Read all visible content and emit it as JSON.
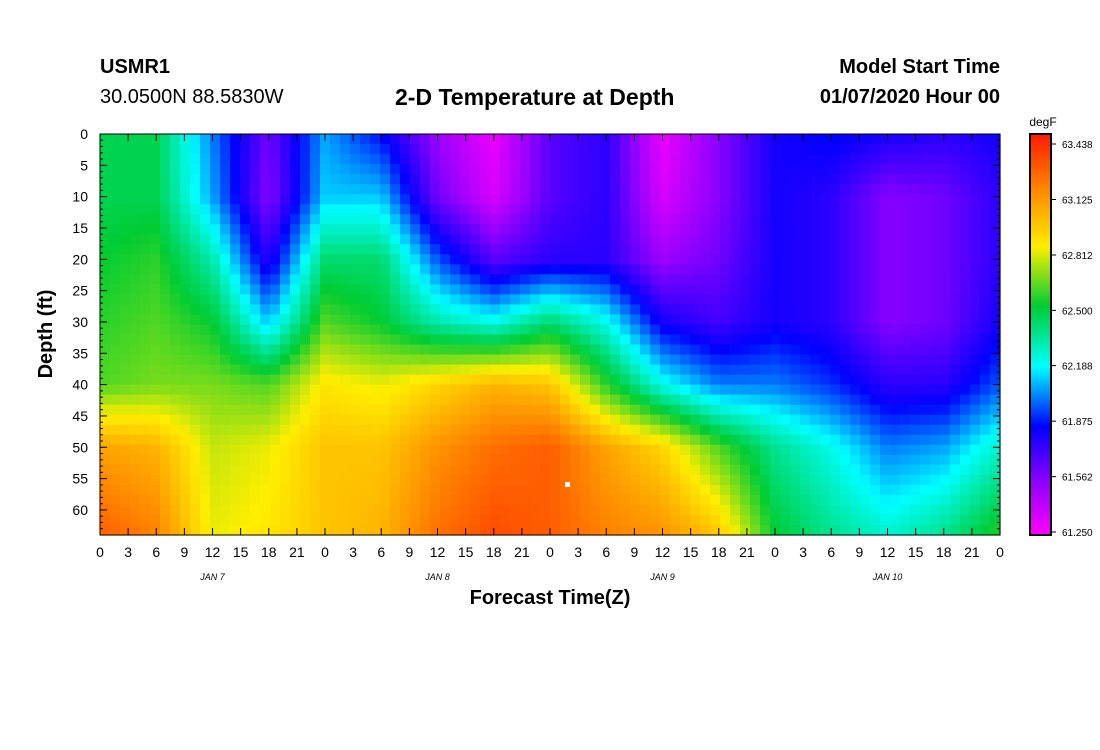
{
  "header": {
    "station_id": "USMR1",
    "coordinates": "30.0500N 88.5830W",
    "title": "2-D Temperature at Depth",
    "start_label": "Model Start Time",
    "start_value": "01/07/2020 Hour 00"
  },
  "chart_data": {
    "type": "heatmap",
    "title": "2-D Temperature at Depth",
    "xlabel": "Forecast Time(Z)",
    "ylabel": "Depth (ft)",
    "x_tick_labels": [
      "0",
      "3",
      "6",
      "9",
      "12",
      "15",
      "18",
      "21",
      "0",
      "3",
      "6",
      "9",
      "12",
      "15",
      "18",
      "21",
      "0",
      "3",
      "6",
      "9",
      "12",
      "15",
      "18",
      "21",
      "0",
      "3",
      "6",
      "9",
      "12",
      "15",
      "18",
      "21",
      "0"
    ],
    "x_range_hours": [
      0,
      96
    ],
    "day_labels": [
      {
        "label": "JAN 7",
        "hour": 12
      },
      {
        "label": "JAN 8",
        "hour": 36
      },
      {
        "label": "JAN 9",
        "hour": 60
      },
      {
        "label": "JAN 10",
        "hour": 84
      }
    ],
    "y_ticks": [
      0,
      5,
      10,
      15,
      20,
      25,
      30,
      35,
      40,
      45,
      50,
      55,
      60
    ],
    "y_range_ft": [
      0,
      64
    ],
    "y_inverted": true,
    "colorbar": {
      "unit": "degF",
      "min": 61.25,
      "max": 63.438,
      "tick_labels": [
        "63.438",
        "63.125",
        "62.812",
        "62.500",
        "62.188",
        "61.875",
        "61.562",
        "61.250"
      ],
      "tick_values": [
        63.438,
        63.125,
        62.812,
        62.5,
        62.188,
        61.875,
        61.562,
        61.25
      ]
    },
    "depths_ft": [
      0,
      10,
      20,
      30,
      40,
      50,
      64
    ],
    "hours": [
      0,
      6,
      12,
      18,
      24,
      30,
      36,
      42,
      48,
      54,
      60,
      66,
      72,
      78,
      84,
      90,
      96
    ],
    "temperature_degF": [
      [
        62.45,
        62.45,
        62.0,
        61.6,
        62.05,
        61.85,
        61.5,
        61.3,
        61.65,
        61.75,
        61.3,
        61.55,
        61.8,
        61.85,
        61.8,
        61.75,
        61.8
      ],
      [
        62.45,
        62.45,
        62.05,
        61.55,
        62.1,
        62.1,
        61.6,
        61.35,
        61.65,
        61.75,
        61.35,
        61.55,
        61.8,
        61.75,
        61.55,
        61.6,
        61.75
      ],
      [
        62.5,
        62.55,
        62.3,
        61.75,
        62.4,
        62.4,
        61.95,
        61.65,
        61.75,
        61.75,
        61.5,
        61.6,
        61.8,
        61.75,
        61.55,
        61.6,
        61.75
      ],
      [
        62.55,
        62.6,
        62.5,
        62.1,
        62.6,
        62.5,
        62.3,
        62.2,
        62.4,
        62.2,
        61.8,
        61.7,
        61.8,
        61.75,
        61.55,
        61.6,
        61.8
      ],
      [
        62.6,
        62.65,
        62.65,
        62.6,
        62.85,
        62.8,
        62.9,
        63.0,
        62.95,
        62.55,
        62.2,
        62.0,
        62.0,
        61.9,
        61.75,
        61.75,
        61.95
      ],
      [
        63.05,
        63.0,
        62.75,
        62.8,
        62.95,
        62.95,
        63.1,
        63.2,
        63.25,
        63.05,
        62.9,
        62.6,
        62.35,
        62.2,
        62.0,
        62.05,
        62.25
      ],
      [
        63.25,
        63.15,
        62.8,
        62.85,
        62.95,
        63.0,
        63.2,
        63.3,
        63.25,
        63.15,
        63.1,
        62.95,
        62.5,
        62.35,
        62.25,
        62.35,
        62.55
      ]
    ]
  }
}
